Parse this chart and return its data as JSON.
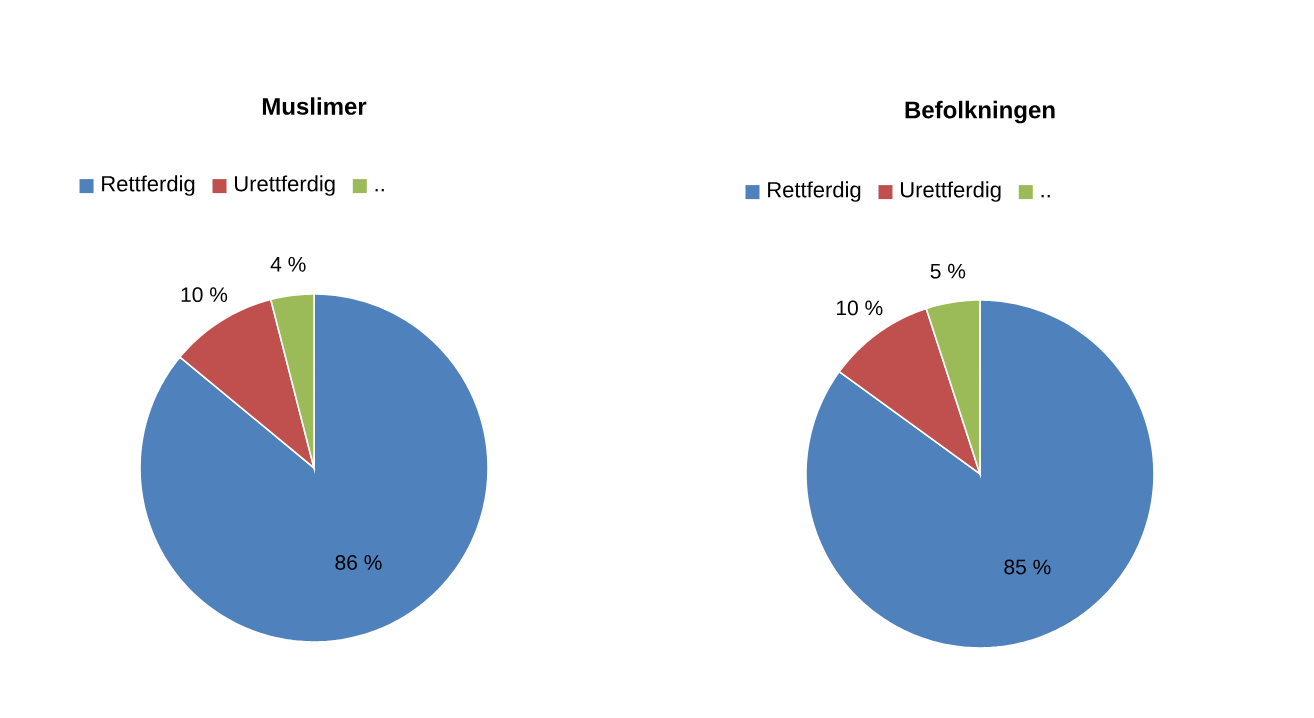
{
  "chart_data": [
    {
      "type": "pie",
      "title": "Muslimer",
      "categories": [
        "Rettferdig",
        "Urettferdig",
        ".."
      ],
      "values": [
        86,
        10,
        4
      ],
      "colors": [
        "#4f81bd",
        "#c0504d",
        "#9bbb59"
      ],
      "value_labels": [
        "86 %",
        "10 %",
        "4 %"
      ],
      "legend": "top"
    },
    {
      "type": "pie",
      "title": "Befolkningen",
      "categories": [
        "Rettferdig",
        "Urettferdig",
        ".."
      ],
      "values": [
        85,
        10,
        5
      ],
      "colors": [
        "#4f81bd",
        "#c0504d",
        "#9bbb59"
      ],
      "value_labels": [
        "85 %",
        "10 %",
        "5 %"
      ],
      "legend": "top"
    }
  ]
}
